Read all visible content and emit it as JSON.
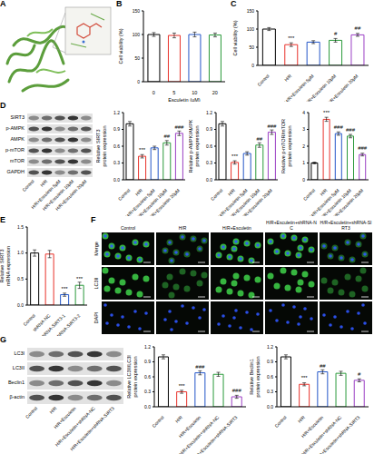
{
  "chart_data": [
    {
      "panel": "B",
      "type": "bar",
      "x_label": "Esculetin (μM)",
      "y_label": "Cell viability (%)",
      "categories": [
        "0",
        "5",
        "10",
        "20"
      ],
      "values": [
        100,
        98,
        100,
        99
      ],
      "errors": [
        4,
        5,
        5,
        4
      ],
      "colors": [
        "#000000",
        "#e8312a",
        "#2356c8",
        "#2a9a3a"
      ],
      "ylim": [
        0,
        150
      ],
      "yticks": [
        0,
        50,
        100,
        150
      ]
    },
    {
      "panel": "C",
      "type": "bar",
      "y_label": "Cell viability (%)",
      "categories": [
        "Control",
        "H/R",
        "H/R+Esculetin 5μM",
        "H/R+Esculetin 10μM",
        "H/R+Esculetin 20μM"
      ],
      "values": [
        100,
        57,
        64,
        69,
        84
      ],
      "errors": [
        4,
        5,
        4,
        5,
        4
      ],
      "annotations": [
        null,
        "***",
        null,
        "#",
        "##"
      ],
      "colors": [
        "#000000",
        "#e8312a",
        "#2356c8",
        "#2a9a3a",
        "#9b3fc4"
      ],
      "ylim": [
        0,
        150
      ],
      "yticks": [
        0,
        50,
        100,
        150
      ]
    },
    {
      "type": "bar",
      "y_label": "Relative SIRT3 protein expression",
      "categories": [
        "Control",
        "H/R",
        "H/R+Esculetin 5μM",
        "H/R+Esculetin 10μM",
        "H/R+Esculetin 20μM"
      ],
      "values": [
        1.0,
        0.42,
        0.57,
        0.66,
        0.83
      ],
      "errors": [
        0.04,
        0.03,
        0.03,
        0.04,
        0.04
      ],
      "annotations": [
        null,
        "***",
        null,
        "##",
        "###"
      ],
      "colors": [
        "#000000",
        "#e8312a",
        "#2356c8",
        "#2a9a3a",
        "#9b3fc4"
      ],
      "ylim": [
        0,
        1.2
      ],
      "yticks": [
        {
          "value": 0,
          "label": "0.0"
        },
        0.3,
        0.6,
        0.9,
        1.2
      ]
    },
    {
      "type": "bar",
      "y_label": "Relative p-AMPK/AMPK protein expression",
      "categories": [
        "Control",
        "H/R",
        "H/R+Esculetin 5μM",
        "H/R+Esculetin 10μM",
        "H/R+Esculetin 20μM"
      ],
      "values": [
        1.0,
        0.31,
        0.47,
        0.62,
        0.85
      ],
      "errors": [
        0.04,
        0.03,
        0.03,
        0.04,
        0.04
      ],
      "annotations": [
        null,
        "***",
        null,
        "##",
        "###"
      ],
      "colors": [
        "#000000",
        "#e8312a",
        "#2356c8",
        "#2a9a3a",
        "#9b3fc4"
      ],
      "ylim": [
        0,
        1.2
      ],
      "yticks": [
        {
          "value": 0,
          "label": "0.0"
        },
        0.3,
        0.6,
        0.9,
        1.2
      ]
    },
    {
      "type": "bar",
      "y_label": "Relative p-mTOR/mTOR protein expression",
      "categories": [
        "Control",
        "H/R",
        "H/R+Esculetin 5μM",
        "H/R+Esculetin 10μM",
        "H/R+Esculetin 20μM"
      ],
      "values": [
        1.0,
        3.6,
        2.75,
        2.6,
        1.5
      ],
      "errors": [
        0.05,
        0.12,
        0.1,
        0.1,
        0.08
      ],
      "annotations": [
        null,
        "***",
        "###",
        "###",
        "###"
      ],
      "colors": [
        "#000000",
        "#e8312a",
        "#2356c8",
        "#2a9a3a",
        "#9b3fc4"
      ],
      "ylim": [
        0,
        4
      ],
      "yticks": [
        0,
        1,
        2,
        3,
        4
      ]
    },
    {
      "panel": "E",
      "type": "bar",
      "y_label": "Relative SIRT3 mRNA expression",
      "categories": [
        "Control",
        "shRNA-NC",
        "shRNA-SIRT3-1",
        "shRNA-SIRT3-2"
      ],
      "values": [
        1.0,
        0.98,
        0.2,
        0.38
      ],
      "errors": [
        0.06,
        0.07,
        0.03,
        0.06
      ],
      "annotations": [
        null,
        null,
        "***",
        "***"
      ],
      "colors": [
        "#000000",
        "#e8312a",
        "#2356c8",
        "#2a9a3a"
      ],
      "ylim": [
        0,
        1.5
      ],
      "yticks": [
        {
          "value": 0,
          "label": "0.0"
        },
        0.5,
        {
          "value": 1,
          "label": "1.0"
        },
        1.5
      ]
    },
    {
      "type": "bar",
      "y_label": "Relative LC3II/LC3I protein expression",
      "categories": [
        "Control",
        "H/R",
        "H/R+Esculetin",
        "H/R+Esculetin+shRNA-NC",
        "H/R+Esculetin+shRNA-SIRT3"
      ],
      "values": [
        1.0,
        0.3,
        0.68,
        0.65,
        0.2
      ],
      "errors": [
        0.04,
        0.03,
        0.04,
        0.04,
        0.03
      ],
      "annotations": [
        null,
        "***",
        "###",
        null,
        "###"
      ],
      "colors": [
        "#000000",
        "#e8312a",
        "#2356c8",
        "#2a9a3a",
        "#9b3fc4"
      ],
      "ylim": [
        0,
        1.2
      ],
      "yticks": [
        {
          "value": 0,
          "label": "0.0"
        },
        0.3,
        0.6,
        0.9,
        1.2
      ]
    },
    {
      "type": "bar",
      "y_label": "Relative Beclin1 protein expression",
      "categories": [
        "Control",
        "H/R",
        "H/R+Esculetin",
        "H/R+Esculetin+shRNA-NC",
        "H/R+Esculetin+shRNA-SIRT3"
      ],
      "values": [
        1.0,
        0.45,
        0.7,
        0.67,
        0.53
      ],
      "errors": [
        0.04,
        0.03,
        0.04,
        0.04,
        0.03
      ],
      "annotations": [
        null,
        "***",
        "##",
        null,
        "#"
      ],
      "colors": [
        "#000000",
        "#e8312a",
        "#2356c8",
        "#2a9a3a",
        "#9b3fc4"
      ],
      "ylim": [
        0,
        1.2
      ],
      "yticks": [
        {
          "value": 0,
          "label": "0.0"
        },
        0.3,
        0.6,
        0.9,
        1.2
      ]
    }
  ],
  "images": {
    "A": {
      "panel": "A"
    },
    "D": {
      "panel": "D",
      "rows": [
        "SIRT3",
        "p-AMPK",
        "AMPK",
        "p-mTOR",
        "mTOR",
        "GAPDH"
      ],
      "lanes": [
        "Control",
        "H/R",
        "H/R+Esculetin 5μM",
        "H/R+Esculetin 10μM",
        "H/R+Esculetin 20μM"
      ]
    },
    "F": {
      "panel": "F",
      "columns": [
        "Control",
        "H/R",
        "H/R+Esculetin",
        "H/R+Esculetin+shRNA-NC",
        "H/R+Esculetin+shRNA-SIRT3"
      ],
      "rows": [
        "Merge",
        "LC3II",
        "DAPI"
      ]
    },
    "G": {
      "panel": "G",
      "rows": [
        "LC3I",
        "LC3II",
        "Beclin1",
        "β-actin"
      ],
      "lanes": [
        "Control",
        "H/R",
        "H/R+Esculetin",
        "H/R+Esculetin+shRNA-NC",
        "H/R+Esculetin+shRNA-SIRT3"
      ]
    }
  }
}
